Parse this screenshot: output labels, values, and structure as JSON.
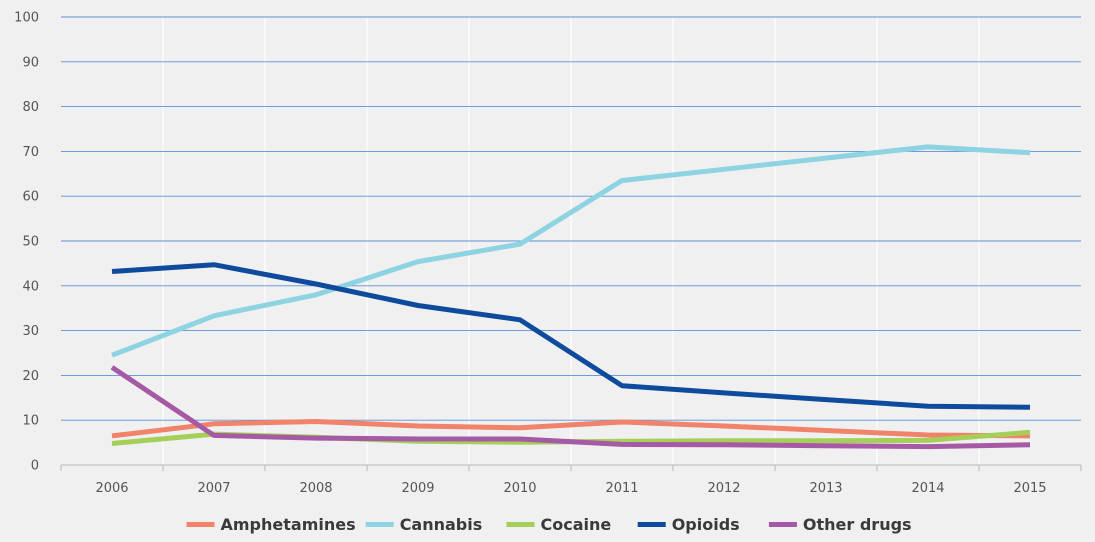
{
  "chart_data": {
    "type": "line",
    "title": "",
    "xlabel": "",
    "ylabel": "",
    "categories": [
      "2006",
      "2007",
      "2008",
      "2009",
      "2010",
      "2011",
      "2012",
      "2013",
      "2014",
      "2015"
    ],
    "ylim": [
      0,
      100
    ],
    "yticks": [
      "0",
      "10",
      "20",
      "30",
      "40",
      "50",
      "60",
      "70",
      "80",
      "90",
      "100"
    ],
    "grid": true,
    "legend_position": "bottom",
    "series": [
      {
        "name": "Amphetamines",
        "color": "#f0836a",
        "values": [
          6.5,
          9.2,
          9.7,
          8.7,
          8.3,
          9.6,
          8.7,
          7.7,
          6.7,
          6.5
        ]
      },
      {
        "name": "Cannabis",
        "color": "#8dd3e2",
        "values": [
          24.5,
          33.3,
          38.0,
          45.4,
          49.3,
          63.5,
          66.0,
          68.5,
          71.0,
          69.7
        ]
      },
      {
        "name": "Cocaine",
        "color": "#a6cf5a",
        "values": [
          4.8,
          6.9,
          6.2,
          5.3,
          5.1,
          5.3,
          5.4,
          5.4,
          5.5,
          7.3
        ]
      },
      {
        "name": "Opioids",
        "color": "#0e4b9c",
        "values": [
          43.2,
          44.7,
          40.4,
          35.6,
          32.4,
          17.7,
          16.1,
          14.6,
          13.1,
          12.9
        ]
      },
      {
        "name": "Other drugs",
        "color": "#a659a4",
        "values": [
          21.8,
          6.6,
          6.0,
          5.8,
          5.8,
          4.6,
          4.5,
          4.3,
          4.1,
          4.5
        ]
      }
    ]
  }
}
